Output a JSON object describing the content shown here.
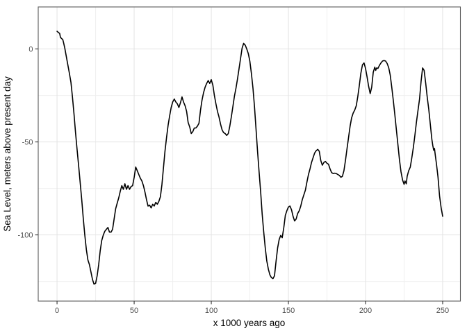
{
  "chart_data": {
    "type": "line",
    "title": "",
    "xlabel": "x 1000 years ago",
    "ylabel": "Sea Level, meters above present day",
    "x_domain": [
      -12.2,
      261.5
    ],
    "y_domain": [
      -135.6,
      22.6
    ],
    "x_ticks": [
      {
        "value": 0,
        "label": "0"
      },
      {
        "value": 50,
        "label": "50"
      },
      {
        "value": 100,
        "label": "100"
      },
      {
        "value": 150,
        "label": "150"
      },
      {
        "value": 200,
        "label": "200"
      },
      {
        "value": 250,
        "label": "250"
      }
    ],
    "x_minor_ticks": [
      25,
      75,
      125,
      175,
      225
    ],
    "y_ticks": [
      {
        "value": 0,
        "label": "0"
      },
      {
        "value": -50,
        "label": "-50"
      },
      {
        "value": -100,
        "label": "-100"
      }
    ],
    "y_minor_ticks": [
      -25,
      -75,
      -125
    ],
    "grid": true,
    "legend": "none",
    "colors": {
      "line": "#000000",
      "grid_major": "#e3e3e3",
      "grid_minor": "#efefef",
      "panel_border": "#595959",
      "tick_mark": "#333333",
      "tick_label": "#4d4d4d",
      "axis_title": "#000000",
      "background": "#ffffff"
    },
    "series": [
      {
        "name": "sea_level",
        "points": [
          [
            0,
            9.5
          ],
          [
            1,
            8.8
          ],
          [
            1.7,
            8.3
          ],
          [
            2.2,
            6.2
          ],
          [
            3,
            5.6
          ],
          [
            3.7,
            5.1
          ],
          [
            4.2,
            3.5
          ],
          [
            5,
            0.5
          ],
          [
            6,
            -4
          ],
          [
            7,
            -8.5
          ],
          [
            8,
            -13
          ],
          [
            9,
            -18
          ],
          [
            10,
            -26
          ],
          [
            11,
            -35
          ],
          [
            12,
            -45
          ],
          [
            13,
            -54
          ],
          [
            14,
            -63
          ],
          [
            15,
            -72
          ],
          [
            16,
            -81
          ],
          [
            17,
            -91
          ],
          [
            18,
            -100
          ],
          [
            19,
            -108
          ],
          [
            20,
            -113.5
          ],
          [
            21,
            -116
          ],
          [
            22,
            -120
          ],
          [
            23,
            -124
          ],
          [
            24,
            -126.5
          ],
          [
            25,
            -126
          ],
          [
            26,
            -122
          ],
          [
            27,
            -116
          ],
          [
            28,
            -108.5
          ],
          [
            29,
            -103
          ],
          [
            30,
            -100
          ],
          [
            31,
            -98
          ],
          [
            32,
            -97
          ],
          [
            33,
            -96
          ],
          [
            34,
            -98.5
          ],
          [
            35,
            -98.5
          ],
          [
            36,
            -97
          ],
          [
            37,
            -91.5
          ],
          [
            38,
            -86
          ],
          [
            39,
            -83
          ],
          [
            40,
            -80
          ],
          [
            41,
            -76.5
          ],
          [
            42,
            -73.5
          ],
          [
            43,
            -75.5
          ],
          [
            44,
            -72.5
          ],
          [
            45,
            -75.5
          ],
          [
            46,
            -73.5
          ],
          [
            47,
            -75.5
          ],
          [
            48,
            -74
          ],
          [
            49,
            -73.5
          ],
          [
            50,
            -69
          ],
          [
            51,
            -63.5
          ],
          [
            52,
            -65.5
          ],
          [
            53,
            -67.5
          ],
          [
            54,
            -69.5
          ],
          [
            55,
            -71
          ],
          [
            56,
            -73.5
          ],
          [
            57,
            -77
          ],
          [
            58,
            -81
          ],
          [
            59,
            -84.5
          ],
          [
            60,
            -84
          ],
          [
            61,
            -85.5
          ],
          [
            62,
            -83.5
          ],
          [
            63,
            -84.5
          ],
          [
            64,
            -82.5
          ],
          [
            65,
            -83.5
          ],
          [
            66,
            -82
          ],
          [
            67,
            -79.5
          ],
          [
            68,
            -73
          ],
          [
            69,
            -64
          ],
          [
            70,
            -55
          ],
          [
            71,
            -47.5
          ],
          [
            72,
            -41
          ],
          [
            73,
            -36
          ],
          [
            74,
            -31.5
          ],
          [
            75,
            -28.5
          ],
          [
            76,
            -26.9
          ],
          [
            77,
            -28.5
          ],
          [
            78,
            -29.5
          ],
          [
            79,
            -31.5
          ],
          [
            80,
            -29
          ],
          [
            81,
            -25.8
          ],
          [
            82,
            -28.5
          ],
          [
            83,
            -30.5
          ],
          [
            84,
            -33.5
          ],
          [
            85,
            -39.5
          ],
          [
            86,
            -42
          ],
          [
            87,
            -45.5
          ],
          [
            88,
            -44.5
          ],
          [
            89,
            -42.5
          ],
          [
            90,
            -42.5
          ],
          [
            91,
            -41.5
          ],
          [
            92,
            -40
          ],
          [
            93,
            -33
          ],
          [
            94,
            -27.5
          ],
          [
            95,
            -23.5
          ],
          [
            96,
            -20.5
          ],
          [
            97,
            -18.5
          ],
          [
            98,
            -17
          ],
          [
            99,
            -18.5
          ],
          [
            100,
            -16.5
          ],
          [
            101,
            -19.5
          ],
          [
            102,
            -25
          ],
          [
            103,
            -29.5
          ],
          [
            104,
            -33.5
          ],
          [
            105,
            -36.5
          ],
          [
            106,
            -40.5
          ],
          [
            107,
            -43.5
          ],
          [
            108,
            -45
          ],
          [
            109,
            -45.5
          ],
          [
            110,
            -46.5
          ],
          [
            111,
            -45.5
          ],
          [
            112,
            -41.5
          ],
          [
            113,
            -36.5
          ],
          [
            114,
            -31
          ],
          [
            115,
            -25.5
          ],
          [
            116,
            -21
          ],
          [
            117,
            -16
          ],
          [
            118,
            -10.5
          ],
          [
            119,
            -5
          ],
          [
            120,
            0.5
          ],
          [
            121,
            3
          ],
          [
            122,
            2
          ],
          [
            123,
            0
          ],
          [
            124,
            -2.5
          ],
          [
            125,
            -6.5
          ],
          [
            126,
            -13
          ],
          [
            127,
            -21
          ],
          [
            128,
            -31
          ],
          [
            129,
            -43
          ],
          [
            130,
            -55
          ],
          [
            131,
            -66
          ],
          [
            132,
            -77
          ],
          [
            133,
            -89
          ],
          [
            134,
            -98.5
          ],
          [
            135,
            -107
          ],
          [
            136,
            -114
          ],
          [
            137,
            -118.5
          ],
          [
            138,
            -121.5
          ],
          [
            139,
            -123
          ],
          [
            140,
            -123.5
          ],
          [
            141,
            -122
          ],
          [
            142,
            -114
          ],
          [
            143,
            -107
          ],
          [
            144,
            -102.5
          ],
          [
            145,
            -100.3
          ],
          [
            146,
            -101.5
          ],
          [
            147,
            -96
          ],
          [
            148,
            -89.5
          ],
          [
            149,
            -87
          ],
          [
            150,
            -85
          ],
          [
            151,
            -84.5
          ],
          [
            152,
            -86.5
          ],
          [
            153,
            -90
          ],
          [
            154,
            -92.5
          ],
          [
            155,
            -91.5
          ],
          [
            156,
            -88.5
          ],
          [
            157,
            -87
          ],
          [
            158,
            -84.5
          ],
          [
            159,
            -81
          ],
          [
            160,
            -78.5
          ],
          [
            161,
            -76
          ],
          [
            162,
            -71.5
          ],
          [
            163,
            -67.5
          ],
          [
            164,
            -64.5
          ],
          [
            165,
            -61
          ],
          [
            166,
            -58.5
          ],
          [
            167,
            -56
          ],
          [
            168,
            -54.7
          ],
          [
            169,
            -54
          ],
          [
            170,
            -55
          ],
          [
            171,
            -60
          ],
          [
            172,
            -62.5
          ],
          [
            173,
            -61
          ],
          [
            174,
            -60.5
          ],
          [
            175,
            -61.5
          ],
          [
            176,
            -62
          ],
          [
            177,
            -64.5
          ],
          [
            178,
            -66.5
          ],
          [
            179,
            -67
          ],
          [
            180,
            -66.8
          ],
          [
            181,
            -67
          ],
          [
            182,
            -67.5
          ],
          [
            183,
            -68
          ],
          [
            184,
            -69
          ],
          [
            185,
            -68.5
          ],
          [
            186,
            -65.5
          ],
          [
            187,
            -60
          ],
          [
            188,
            -53.5
          ],
          [
            189,
            -47.5
          ],
          [
            190,
            -41.5
          ],
          [
            191,
            -37
          ],
          [
            192,
            -34.5
          ],
          [
            193,
            -32.8
          ],
          [
            194,
            -30.5
          ],
          [
            195,
            -25.5
          ],
          [
            196,
            -19.5
          ],
          [
            197,
            -13
          ],
          [
            198,
            -8.5
          ],
          [
            199,
            -7.5
          ],
          [
            200,
            -10.5
          ],
          [
            201,
            -15
          ],
          [
            202,
            -20
          ],
          [
            203,
            -24
          ],
          [
            204,
            -20.5
          ],
          [
            205,
            -12.5
          ],
          [
            206,
            -9.8
          ],
          [
            206.6,
            -11.5
          ],
          [
            207.2,
            -10.2
          ],
          [
            208,
            -10.5
          ],
          [
            209,
            -8.8
          ],
          [
            210,
            -7.5
          ],
          [
            211,
            -6.5
          ],
          [
            212,
            -6.2
          ],
          [
            213,
            -6.5
          ],
          [
            214,
            -7.8
          ],
          [
            215,
            -10
          ],
          [
            216,
            -14
          ],
          [
            217,
            -20.5
          ],
          [
            218,
            -27.5
          ],
          [
            219,
            -35.5
          ],
          [
            220,
            -43.5
          ],
          [
            221,
            -51.5
          ],
          [
            222,
            -59.5
          ],
          [
            223,
            -66
          ],
          [
            224,
            -70.5
          ],
          [
            225,
            -72.8
          ],
          [
            225.6,
            -71
          ],
          [
            226.4,
            -72.5
          ],
          [
            227,
            -68.5
          ],
          [
            228,
            -65.5
          ],
          [
            229,
            -63.5
          ],
          [
            230,
            -58.5
          ],
          [
            231,
            -53
          ],
          [
            232,
            -46.5
          ],
          [
            233,
            -39.5
          ],
          [
            234,
            -33
          ],
          [
            235,
            -27
          ],
          [
            236,
            -17.5
          ],
          [
            237,
            -10.2
          ],
          [
            238,
            -11.5
          ],
          [
            239,
            -18.5
          ],
          [
            240,
            -26
          ],
          [
            241,
            -32.5
          ],
          [
            242,
            -40.5
          ],
          [
            243,
            -48.5
          ],
          [
            243.6,
            -52
          ],
          [
            244.2,
            -54.5
          ],
          [
            244.7,
            -53.5
          ],
          [
            245.3,
            -57.5
          ],
          [
            246,
            -62
          ],
          [
            247,
            -69
          ],
          [
            248,
            -79
          ],
          [
            249,
            -85.5
          ],
          [
            250,
            -90
          ]
        ]
      }
    ]
  }
}
